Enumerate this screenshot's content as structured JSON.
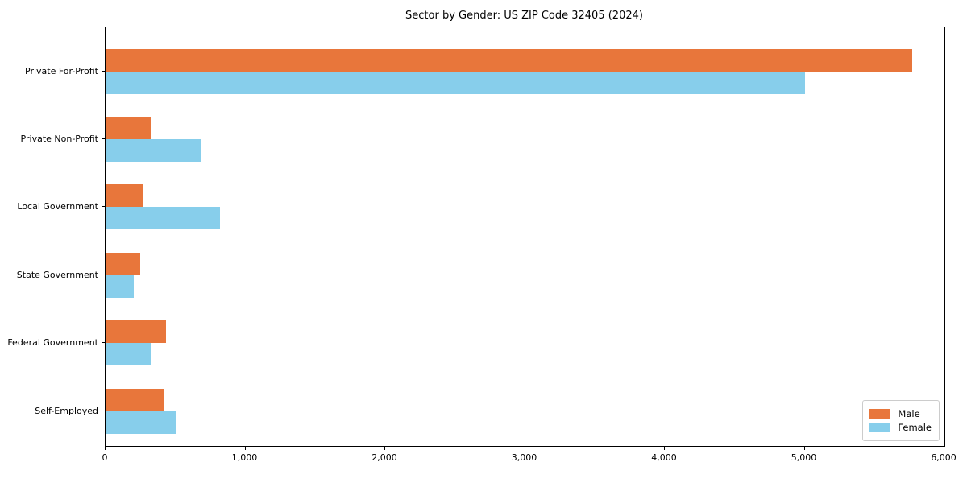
{
  "chart_data": {
    "type": "bar",
    "orientation": "horizontal",
    "title": "Sector by Gender: US ZIP Code 32405 (2024)",
    "categories": [
      "Private For-Profit",
      "Private Non-Profit",
      "Local Government",
      "State Government",
      "Federal Government",
      "Self-Employed"
    ],
    "series": [
      {
        "name": "Male",
        "color": "#E8763B",
        "values": [
          5770,
          320,
          265,
          250,
          430,
          420
        ]
      },
      {
        "name": "Female",
        "color": "#87CEEB",
        "values": [
          5000,
          680,
          820,
          200,
          320,
          505
        ]
      }
    ],
    "xlim": [
      0,
      6000
    ],
    "xticks": [
      0,
      1000,
      2000,
      3000,
      4000,
      5000,
      6000
    ],
    "xtick_labels": [
      "0",
      "1,000",
      "2,000",
      "3,000",
      "4,000",
      "5,000",
      "6,000"
    ],
    "xlabel": "",
    "ylabel": "",
    "grid": false,
    "legend_position": "lower right"
  }
}
